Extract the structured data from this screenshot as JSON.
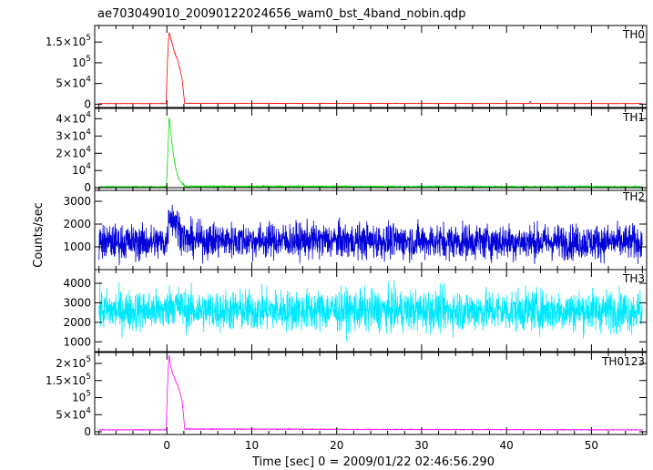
{
  "chart_data": {
    "type": "line",
    "title": "ae703049010_20090122024656_wam0_bst_4band_nobin.qdp",
    "xlabel": "Time [sec] 0 = 2009/01/22 02:46:56.290",
    "ylabel": "Counts/sec",
    "xlim": [
      -8.5,
      56.5
    ],
    "x_ticks": [
      0,
      10,
      20,
      30,
      40,
      50
    ],
    "x_tick_labels": [
      "0",
      "10",
      "20",
      "30",
      "40",
      "50"
    ],
    "grid": false,
    "panels": [
      {
        "name": "TH0",
        "color": "#ff0000",
        "ylim": [
          -8000,
          190000
        ],
        "y_ticks": [
          0,
          50000,
          100000,
          150000
        ],
        "y_tick_labels": [
          {
            "base": "0",
            "exp": ""
          },
          {
            "base": "5×10",
            "exp": "4"
          },
          {
            "base": "10",
            "exp": "5"
          },
          {
            "base": "1.5×10",
            "exp": "5"
          }
        ],
        "baseline": 1500,
        "noise": 300,
        "burst": [
          [
            -8,
            1500
          ],
          [
            -0.1,
            1500
          ],
          [
            0.1,
            120000
          ],
          [
            0.25,
            175000
          ],
          [
            0.45,
            160000
          ],
          [
            0.7,
            140000
          ],
          [
            1.0,
            120000
          ],
          [
            1.3,
            105000
          ],
          [
            1.6,
            80000
          ],
          [
            1.8,
            60000
          ],
          [
            1.95,
            30000
          ],
          [
            2.1,
            2000
          ],
          [
            56,
            1500
          ]
        ],
        "bump": {
          "x": 42.8,
          "y": 6000
        }
      },
      {
        "name": "TH1",
        "color": "#00e000",
        "ylim": [
          -1500,
          46000
        ],
        "y_ticks": [
          0,
          10000,
          20000,
          30000,
          40000
        ],
        "y_tick_labels": [
          {
            "base": "0",
            "exp": ""
          },
          {
            "base": "10",
            "exp": "4"
          },
          {
            "base": "2×10",
            "exp": "4"
          },
          {
            "base": "3×10",
            "exp": "4"
          },
          {
            "base": "4×10",
            "exp": "4"
          }
        ],
        "baseline": 500,
        "noise": 300,
        "burst": [
          [
            -8,
            500
          ],
          [
            -0.05,
            500
          ],
          [
            0.1,
            20000
          ],
          [
            0.3,
            42000
          ],
          [
            0.5,
            30000
          ],
          [
            0.8,
            18000
          ],
          [
            1.1,
            10000
          ],
          [
            1.4,
            5000
          ],
          [
            1.8,
            2500
          ],
          [
            2.2,
            800
          ],
          [
            56,
            500
          ]
        ]
      },
      {
        "name": "TH2",
        "color": "#0000d8",
        "ylim": [
          0,
          3600
        ],
        "y_ticks": [
          1000,
          2000,
          3000
        ],
        "y_tick_labels": [
          {
            "base": "1000",
            "exp": ""
          },
          {
            "base": "2000",
            "exp": ""
          },
          {
            "base": "3000",
            "exp": ""
          }
        ],
        "baseline": 1200,
        "noise": 550,
        "burst": [
          [
            -8,
            1200
          ],
          [
            0,
            1200
          ],
          [
            0.3,
            2500
          ],
          [
            0.8,
            2200
          ],
          [
            1.5,
            1800
          ],
          [
            2.2,
            1300
          ],
          [
            56,
            1200
          ]
        ]
      },
      {
        "name": "TH3",
        "color": "#00e8ff",
        "ylim": [
          500,
          4700
        ],
        "y_ticks": [
          1000,
          2000,
          3000,
          4000
        ],
        "y_tick_labels": [
          {
            "base": "1000",
            "exp": ""
          },
          {
            "base": "2000",
            "exp": ""
          },
          {
            "base": "3000",
            "exp": ""
          },
          {
            "base": "4000",
            "exp": ""
          }
        ],
        "baseline": 2600,
        "noise": 750,
        "burst": [
          [
            -8,
            2600
          ],
          [
            0,
            2600
          ],
          [
            0.4,
            3000
          ],
          [
            1.5,
            2800
          ],
          [
            2.5,
            2600
          ],
          [
            56,
            2600
          ]
        ]
      },
      {
        "name": "TH0123",
        "color": "#ff00ff",
        "ylim": [
          -8000,
          232000
        ],
        "y_ticks": [
          0,
          50000,
          100000,
          150000,
          200000
        ],
        "y_tick_labels": [
          {
            "base": "0",
            "exp": ""
          },
          {
            "base": "5×10",
            "exp": "4"
          },
          {
            "base": "10",
            "exp": "5"
          },
          {
            "base": "1.5×10",
            "exp": "5"
          },
          {
            "base": "2×10",
            "exp": "5"
          }
        ],
        "baseline": 5500,
        "noise": 700,
        "burst": [
          [
            -8,
            5500
          ],
          [
            -0.1,
            5500
          ],
          [
            0.1,
            150000
          ],
          [
            0.25,
            225000
          ],
          [
            0.45,
            190000
          ],
          [
            0.7,
            170000
          ],
          [
            1.0,
            150000
          ],
          [
            1.3,
            135000
          ],
          [
            1.6,
            110000
          ],
          [
            1.8,
            90000
          ],
          [
            1.95,
            50000
          ],
          [
            2.1,
            8000
          ],
          [
            56,
            5500
          ]
        ]
      }
    ]
  }
}
